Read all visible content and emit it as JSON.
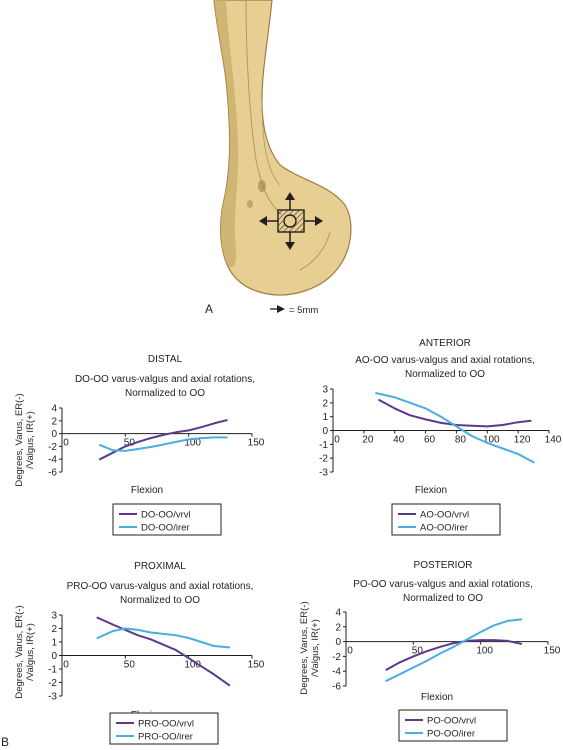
{
  "panel_a": {
    "label": "A",
    "scale_text": "= 5mm"
  },
  "panel_b_label": "B",
  "colors": {
    "purple": "#5b3a8c",
    "blue": "#4aaee0",
    "bone": "#e7cf93",
    "bone_shade": "#c9ac6a"
  },
  "chart_data": [
    {
      "type": "line",
      "section_title": "DISTAL",
      "title": "DO-OO varus-valgus and axial rotations,",
      "subtitle": "Normalized to OO",
      "xlabel": "Flexion",
      "ylabel_line1": "Degrees, Varus, ER(-)",
      "ylabel_line2": "/Valgus, IR(+)",
      "xlim": [
        0,
        150
      ],
      "ylim": [
        -6,
        4
      ],
      "x_ticks": [
        0,
        50,
        100,
        150
      ],
      "y_ticks": [
        4,
        2,
        0,
        -2,
        -4,
        -6
      ],
      "legend_position": "bottom-center",
      "series": [
        {
          "name": "DO-OO/vrvl",
          "color": "#5b3a8c",
          "x": [
            30,
            40,
            50,
            60,
            70,
            80,
            90,
            100,
            110,
            120,
            130
          ],
          "y": [
            -4.0,
            -3.0,
            -2.0,
            -1.3,
            -0.7,
            -0.2,
            0.2,
            0.5,
            1.0,
            1.6,
            2.1
          ]
        },
        {
          "name": "DO-OO/irer",
          "color": "#4aaee0",
          "x": [
            30,
            40,
            50,
            60,
            70,
            80,
            90,
            100,
            110,
            120,
            130
          ],
          "y": [
            -1.8,
            -2.6,
            -2.7,
            -2.4,
            -2.1,
            -1.7,
            -1.3,
            -0.9,
            -0.7,
            -0.6,
            -0.6
          ]
        }
      ]
    },
    {
      "type": "line",
      "section_title": "ANTERIOR",
      "title": "AO-OO varus-valgus and axial rotations,",
      "subtitle": "Normalized to OO",
      "xlabel": "Flexion",
      "ylabel_line1": "",
      "ylabel_line2": "",
      "xlim": [
        0,
        140
      ],
      "ylim": [
        -3,
        3
      ],
      "x_ticks": [
        0,
        20,
        40,
        60,
        80,
        100,
        120,
        140
      ],
      "y_ticks": [
        3,
        2,
        1,
        0,
        -1,
        -2,
        -3
      ],
      "legend_position": "bottom-center",
      "series": [
        {
          "name": "AO-OO/vrvl",
          "color": "#5b3a8c",
          "x": [
            30,
            40,
            50,
            60,
            70,
            80,
            90,
            100,
            110,
            120,
            128
          ],
          "y": [
            2.2,
            1.6,
            1.1,
            0.8,
            0.55,
            0.4,
            0.35,
            0.3,
            0.4,
            0.6,
            0.7
          ]
        },
        {
          "name": "AO-OO/irer",
          "color": "#4aaee0",
          "x": [
            28,
            40,
            50,
            60,
            70,
            80,
            90,
            100,
            110,
            120,
            130
          ],
          "y": [
            2.7,
            2.4,
            2.0,
            1.6,
            1.0,
            0.3,
            -0.4,
            -0.9,
            -1.3,
            -1.7,
            -2.3
          ]
        }
      ]
    },
    {
      "type": "line",
      "section_title": "PROXIMAL",
      "title": "PRO-OO varus-valgus and axial rotations,",
      "subtitle": "Normalized to OO",
      "xlabel": "Flexion",
      "ylabel_line1": "Degrees, Varus, ER(-)",
      "ylabel_line2": "/Valgus, IR(+)",
      "xlim": [
        0,
        150
      ],
      "ylim": [
        -3,
        3
      ],
      "x_ticks": [
        0,
        50,
        100,
        150
      ],
      "y_ticks": [
        3,
        2,
        1,
        0,
        -1,
        -2,
        -3
      ],
      "legend_position": "bottom-center",
      "series": [
        {
          "name": "PRO-OO/vrvl",
          "color": "#5b3a8c",
          "x": [
            28,
            40,
            50,
            60,
            70,
            80,
            90,
            100,
            110,
            120,
            132
          ],
          "y": [
            2.8,
            2.3,
            1.9,
            1.5,
            1.2,
            0.8,
            0.4,
            -0.2,
            -0.8,
            -1.4,
            -2.2
          ]
        },
        {
          "name": "PRO-OO/irer",
          "color": "#4aaee0",
          "x": [
            28,
            40,
            50,
            60,
            70,
            80,
            90,
            100,
            110,
            120,
            132
          ],
          "y": [
            1.3,
            1.8,
            2.0,
            1.9,
            1.7,
            1.6,
            1.5,
            1.3,
            1.0,
            0.7,
            0.6
          ]
        }
      ]
    },
    {
      "type": "line",
      "section_title": "POSTERIOR",
      "title": "PO-OO varus-valgus and axial rotations,",
      "subtitle": "Normalized to OO",
      "xlabel": "Flexion",
      "ylabel_line1": "Degrees, Varus, ER(-)",
      "ylabel_line2": "/Valgus, IR(+)",
      "xlim": [
        0,
        150
      ],
      "ylim": [
        -6,
        4
      ],
      "x_ticks": [
        0,
        50,
        100,
        150
      ],
      "y_ticks": [
        4,
        2,
        0,
        -2,
        -4,
        -6
      ],
      "legend_position": "bottom-center",
      "series": [
        {
          "name": "PO-OO/vrvl",
          "color": "#5b3a8c",
          "x": [
            30,
            40,
            50,
            60,
            70,
            80,
            90,
            100,
            110,
            120,
            130
          ],
          "y": [
            -3.8,
            -2.8,
            -2.0,
            -1.3,
            -0.7,
            -0.2,
            0.1,
            0.2,
            0.2,
            0.1,
            -0.3
          ]
        },
        {
          "name": "PO-OO/irer",
          "color": "#4aaee0",
          "x": [
            30,
            40,
            50,
            60,
            70,
            80,
            90,
            100,
            110,
            120,
            130
          ],
          "y": [
            -5.3,
            -4.4,
            -3.5,
            -2.6,
            -1.6,
            -0.7,
            0.3,
            1.3,
            2.2,
            2.8,
            3.0
          ]
        }
      ]
    }
  ]
}
